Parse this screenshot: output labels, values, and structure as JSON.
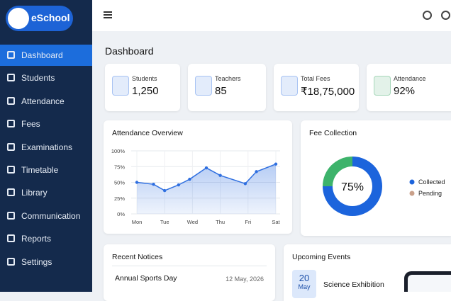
{
  "sidebar": {
    "logo": "eSchool",
    "items": [
      "Dashboard",
      "Students",
      "Attendance",
      "Fees",
      "Examinations",
      "Timetable",
      "Library",
      "Communication",
      "Reports",
      "Settings"
    ],
    "active": 0
  },
  "header": {
    "title": "Dashboard"
  },
  "stats": [
    {
      "label": "Students",
      "value": "1,250",
      "color": "#2f6fe0"
    },
    {
      "label": "Teachers",
      "value": "85",
      "color": "#2f6fe0"
    },
    {
      "label": "Total Fees",
      "value": "₹18,75,000",
      "color": "#2f6fe0"
    },
    {
      "label": "Attendance",
      "value": "92%",
      "color": "#2e9e5b"
    }
  ],
  "chart_data": [
    {
      "type": "line",
      "title": "Attendance Overview",
      "x": [
        0,
        0.6,
        1,
        1.5,
        1.9,
        2.5,
        3,
        3.9,
        4.3,
        5
      ],
      "xlim": [
        0,
        5
      ],
      "xticks": [
        {
          "value": 0,
          "label": "Mon"
        },
        {
          "value": 1,
          "label": "Tue"
        },
        {
          "value": 2,
          "label": "Wed"
        },
        {
          "value": 3,
          "label": "Thu"
        },
        {
          "value": 4,
          "label": "Fri"
        },
        {
          "value": 5,
          "label": "Sat"
        }
      ],
      "series": [
        {
          "color": "#2f6fe0",
          "values": [
            50,
            47,
            37,
            46,
            55,
            73,
            61,
            48,
            67,
            79
          ]
        }
      ],
      "ylim": [
        0,
        100
      ],
      "yticks": [
        {
          "value": 0,
          "label": "0%"
        },
        {
          "value": 25,
          "label": "25%"
        },
        {
          "value": 50,
          "label": "50%"
        },
        {
          "value": 75,
          "label": "75%"
        },
        {
          "value": 100,
          "label": "100%"
        }
      ],
      "grid": true
    },
    {
      "type": "pie",
      "title": "Fee Collection",
      "donut": true,
      "categories": [
        "Collected",
        "Pending"
      ],
      "values": [
        75,
        25
      ],
      "colors": [
        "#1c64dc",
        "#3db36b"
      ],
      "legend_colors": [
        "#1c64dc",
        "#c9a08a"
      ],
      "center_label": "75%"
    }
  ],
  "notices": {
    "title": "Recent Notices",
    "items": [
      {
        "title": "Annual Sports Day",
        "date": "12 May, 2026"
      }
    ]
  },
  "events": {
    "title": "Upcoming Events",
    "items": [
      {
        "day": "20",
        "month": "May",
        "title": "Science Exhibition"
      }
    ]
  }
}
